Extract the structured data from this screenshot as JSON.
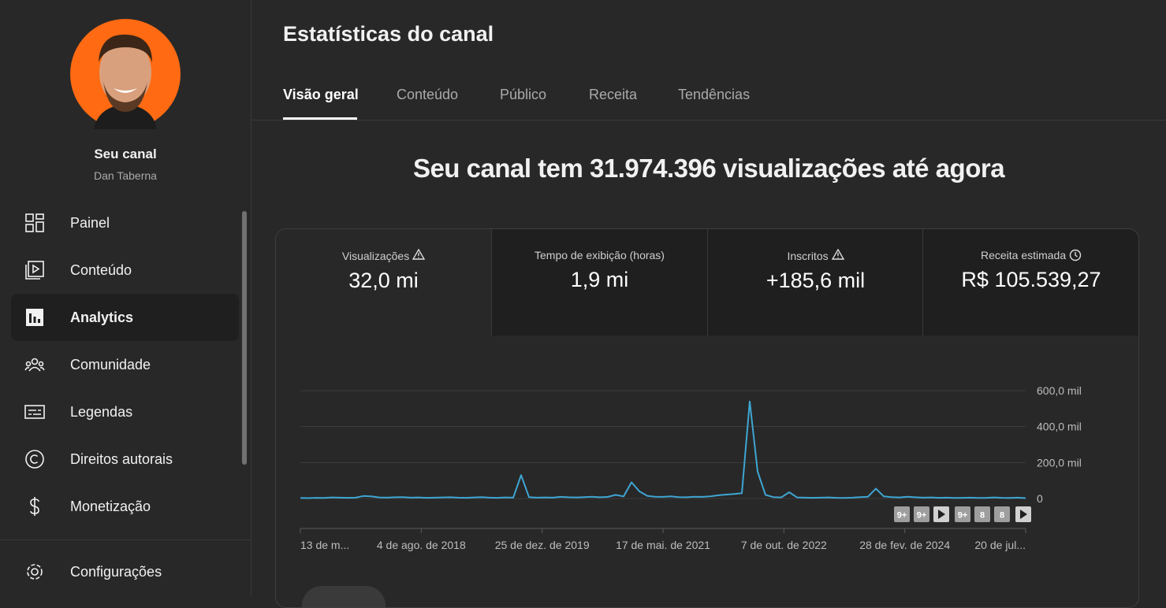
{
  "sidebar": {
    "channel_title": "Seu canal",
    "channel_name": "Dan Taberna",
    "items": [
      "Painel",
      "Conteúdo",
      "Analytics",
      "Comunidade",
      "Legendas",
      "Direitos autorais",
      "Monetização"
    ],
    "settings": "Configurações"
  },
  "header": {
    "title": "Estatísticas do canal",
    "tabs": [
      "Visão geral",
      "Conteúdo",
      "Público",
      "Receita",
      "Tendências"
    ]
  },
  "headline": "Seu canal tem 31.974.396 visualizações até agora",
  "metrics": [
    {
      "label": "Visualizações",
      "value": "32,0 mi"
    },
    {
      "label": "Tempo de exibição (horas)",
      "value": "1,9 mi"
    },
    {
      "label": "Inscritos",
      "value": "+185,6 mil"
    },
    {
      "label": "Receita estimada",
      "value": "R$ 105.539,27"
    }
  ],
  "chart_data": {
    "type": "line",
    "color": "#3ea6d3",
    "x_labels": [
      "13 de m...",
      "4 de ago. de 2018",
      "25 de dez. de 2019",
      "17 de mai. de 2021",
      "7 de out. de 2022",
      "28 de fev. de 2024",
      "20 de jul..."
    ],
    "values": [
      3000,
      2000,
      4000,
      3000,
      6000,
      5000,
      4000,
      5000,
      14000,
      12000,
      6000,
      5000,
      7000,
      8000,
      5000,
      6000,
      4000,
      5000,
      6000,
      7000,
      5000,
      4000,
      6000,
      8000,
      5000,
      4000,
      6000,
      5000,
      130000,
      8000,
      5000,
      6000,
      5000,
      9000,
      7000,
      6000,
      8000,
      10000,
      7000,
      9000,
      20000,
      12000,
      90000,
      40000,
      15000,
      10000,
      9000,
      12000,
      8000,
      7000,
      10000,
      9000,
      12000,
      18000,
      22000,
      25000,
      30000,
      540000,
      150000,
      20000,
      8000,
      6000,
      35000,
      6000,
      5000,
      4000,
      5000,
      6000,
      4000,
      3000,
      5000,
      8000,
      10000,
      55000,
      12000,
      8000,
      6000,
      10000,
      7000,
      5000,
      6000,
      4000,
      5000,
      3000,
      4000,
      5000,
      3000,
      4000,
      6000,
      4000,
      3000,
      5000,
      2000
    ],
    "ylim": [
      0,
      600000
    ],
    "yticks": [
      {
        "value": 600000,
        "label": "600,0 mil"
      },
      {
        "value": 400000,
        "label": "400,0 mil"
      },
      {
        "value": 200000,
        "label": "200,0 mil"
      },
      0
    ],
    "grid": true,
    "video_markers": [
      "9+",
      "9+",
      "9+",
      "8",
      "8"
    ]
  }
}
